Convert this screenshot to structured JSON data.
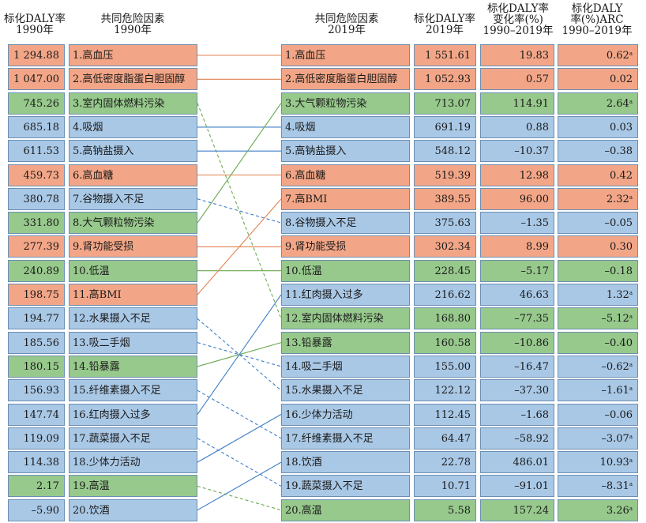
{
  "colors": {
    "metabolic": "#f3a687",
    "behavioral": "#a9c8e6",
    "environmental": "#97c98c"
  },
  "headers": {
    "rate1990": [
      "标化DALY率",
      "1990年"
    ],
    "factor1990": [
      "共同危险因素",
      "1990年"
    ],
    "factor2019": [
      "共同危险因素",
      "2019年"
    ],
    "rate2019": [
      "标化DALY率",
      "2019年"
    ],
    "change": [
      "标化DALY率",
      "变化率(%)",
      "1990–2019年"
    ],
    "arc": [
      "标化DALY",
      "率(%)ARC",
      "1990–2019年"
    ]
  },
  "chart_data": {
    "type": "table",
    "left": [
      {
        "rank": 1,
        "label": "1.高血压",
        "rate": "1 294.88",
        "category": "metabolic"
      },
      {
        "rank": 2,
        "label": "2.高低密度脂蛋白胆固醇",
        "rate": "1 047.00",
        "category": "metabolic"
      },
      {
        "rank": 3,
        "label": "3.室内固体燃料污染",
        "rate": "745.26",
        "category": "environmental"
      },
      {
        "rank": 4,
        "label": "4.吸烟",
        "rate": "685.18",
        "category": "behavioral"
      },
      {
        "rank": 5,
        "label": "5.高钠盐摄入",
        "rate": "611.53",
        "category": "behavioral"
      },
      {
        "rank": 6,
        "label": "6.高血糖",
        "rate": "459.73",
        "category": "metabolic"
      },
      {
        "rank": 7,
        "label": "7.谷物摄入不足",
        "rate": "380.78",
        "category": "behavioral"
      },
      {
        "rank": 8,
        "label": "8.大气颗粒物污染",
        "rate": "331.80",
        "category": "environmental"
      },
      {
        "rank": 9,
        "label": "9.肾功能受损",
        "rate": "277.39",
        "category": "metabolic"
      },
      {
        "rank": 10,
        "label": "10.低温",
        "rate": "240.89",
        "category": "environmental"
      },
      {
        "rank": 11,
        "label": "11.高BMI",
        "rate": "198.75",
        "category": "metabolic"
      },
      {
        "rank": 12,
        "label": "12.水果摄入不足",
        "rate": "194.77",
        "category": "behavioral"
      },
      {
        "rank": 13,
        "label": "13.吸二手烟",
        "rate": "185.56",
        "category": "behavioral"
      },
      {
        "rank": 14,
        "label": "14.铅暴露",
        "rate": "180.15",
        "category": "environmental"
      },
      {
        "rank": 15,
        "label": "15.纤维素摄入不足",
        "rate": "156.93",
        "category": "behavioral"
      },
      {
        "rank": 16,
        "label": "16.红肉摄入过多",
        "rate": "147.74",
        "category": "behavioral"
      },
      {
        "rank": 17,
        "label": "17.蔬菜摄入不足",
        "rate": "119.09",
        "category": "behavioral"
      },
      {
        "rank": 18,
        "label": "18.少体力活动",
        "rate": "114.38",
        "category": "behavioral"
      },
      {
        "rank": 19,
        "label": "19.高温",
        "rate": "2.17",
        "category": "environmental"
      },
      {
        "rank": 20,
        "label": "20.饮酒",
        "rate": "–5.90",
        "category": "behavioral"
      }
    ],
    "right": [
      {
        "rank": 1,
        "label": "1.高血压",
        "rate": "1 551.61",
        "change": "19.83",
        "arc": "0.62",
        "sig": true,
        "category": "metabolic"
      },
      {
        "rank": 2,
        "label": "2.高低密度脂蛋白胆固醇",
        "rate": "1 052.93",
        "change": "0.57",
        "arc": "0.02",
        "sig": false,
        "category": "metabolic"
      },
      {
        "rank": 3,
        "label": "3.大气颗粒物污染",
        "rate": "713.07",
        "change": "114.91",
        "arc": "2.64",
        "sig": true,
        "category": "environmental"
      },
      {
        "rank": 4,
        "label": "4.吸烟",
        "rate": "691.19",
        "change": "0.88",
        "arc": "0.03",
        "sig": false,
        "category": "behavioral"
      },
      {
        "rank": 5,
        "label": "5.高钠盐摄入",
        "rate": "548.12",
        "change": "–10.37",
        "arc": "–0.38",
        "sig": false,
        "category": "behavioral"
      },
      {
        "rank": 6,
        "label": "6.高血糖",
        "rate": "519.39",
        "change": "12.98",
        "arc": "0.42",
        "sig": false,
        "category": "metabolic"
      },
      {
        "rank": 7,
        "label": "7.高BMI",
        "rate": "389.55",
        "change": "96.00",
        "arc": "2.32",
        "sig": true,
        "category": "metabolic"
      },
      {
        "rank": 8,
        "label": "8.谷物摄入不足",
        "rate": "375.63",
        "change": "–1.35",
        "arc": "–0.05",
        "sig": false,
        "category": "behavioral"
      },
      {
        "rank": 9,
        "label": "9.肾功能受损",
        "rate": "302.34",
        "change": "8.99",
        "arc": "0.30",
        "sig": false,
        "category": "metabolic"
      },
      {
        "rank": 10,
        "label": "10.低温",
        "rate": "228.45",
        "change": "–5.17",
        "arc": "–0.18",
        "sig": false,
        "category": "environmental"
      },
      {
        "rank": 11,
        "label": "11.红肉摄入过多",
        "rate": "216.62",
        "change": "46.63",
        "arc": "1.32",
        "sig": true,
        "category": "behavioral"
      },
      {
        "rank": 12,
        "label": "12.室内固体燃料污染",
        "rate": "168.80",
        "change": "–77.35",
        "arc": "–5.12",
        "sig": true,
        "category": "environmental"
      },
      {
        "rank": 13,
        "label": "13.铅暴露",
        "rate": "160.58",
        "change": "–10.86",
        "arc": "–0.40",
        "sig": false,
        "category": "environmental"
      },
      {
        "rank": 14,
        "label": "14.吸二手烟",
        "rate": "155.00",
        "change": "–16.47",
        "arc": "–0.62",
        "sig": true,
        "category": "behavioral"
      },
      {
        "rank": 15,
        "label": "15.水果摄入不足",
        "rate": "122.12",
        "change": "–37.30",
        "arc": "–1.61",
        "sig": true,
        "category": "behavioral"
      },
      {
        "rank": 16,
        "label": "16.少体力活动",
        "rate": "112.45",
        "change": "–1.68",
        "arc": "–0.06",
        "sig": false,
        "category": "behavioral"
      },
      {
        "rank": 17,
        "label": "17.纤维素摄入不足",
        "rate": "64.47",
        "change": "–58.92",
        "arc": "–3.07",
        "sig": true,
        "category": "behavioral"
      },
      {
        "rank": 18,
        "label": "18.饮酒",
        "rate": "22.78",
        "change": "486.01",
        "arc": "10.93",
        "sig": true,
        "category": "behavioral"
      },
      {
        "rank": 19,
        "label": "19.蔬菜摄入不足",
        "rate": "10.71",
        "change": "–91.01",
        "arc": "–8.31",
        "sig": true,
        "category": "behavioral"
      },
      {
        "rank": 20,
        "label": "20.高温",
        "rate": "5.58",
        "change": "157.24",
        "arc": "3.26",
        "sig": true,
        "category": "environmental"
      }
    ],
    "sig_mark": "a"
  }
}
